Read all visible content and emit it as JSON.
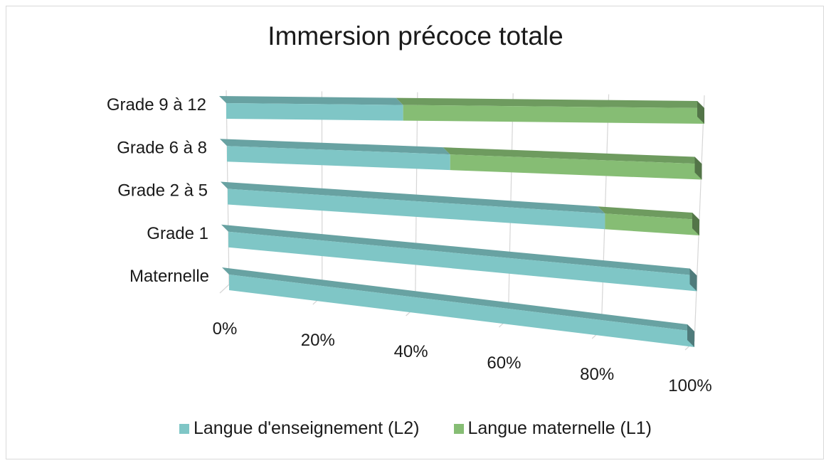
{
  "chart_data": {
    "type": "bar",
    "orientation": "horizontal",
    "stacked": "100%",
    "three_d": true,
    "title": "Immersion précoce totale",
    "categories": [
      "Grade 9 à 12",
      "Grade 6 à 8",
      "Grade 2 à 5",
      "Grade 1",
      "Maternelle"
    ],
    "series": [
      {
        "name": "Langue d'enseignement (L2)",
        "color": "#7fc6c6",
        "values": [
          37,
          47,
          80,
          100,
          100
        ]
      },
      {
        "name": "Langue maternelle (L1)",
        "color": "#86bd74",
        "values": [
          63,
          53,
          20,
          0,
          0
        ]
      }
    ],
    "x_ticks": [
      "0%",
      "20%",
      "40%",
      "60%",
      "80%",
      "100%"
    ],
    "xlim": [
      0,
      100
    ],
    "grid": true,
    "legend_position": "bottom"
  }
}
